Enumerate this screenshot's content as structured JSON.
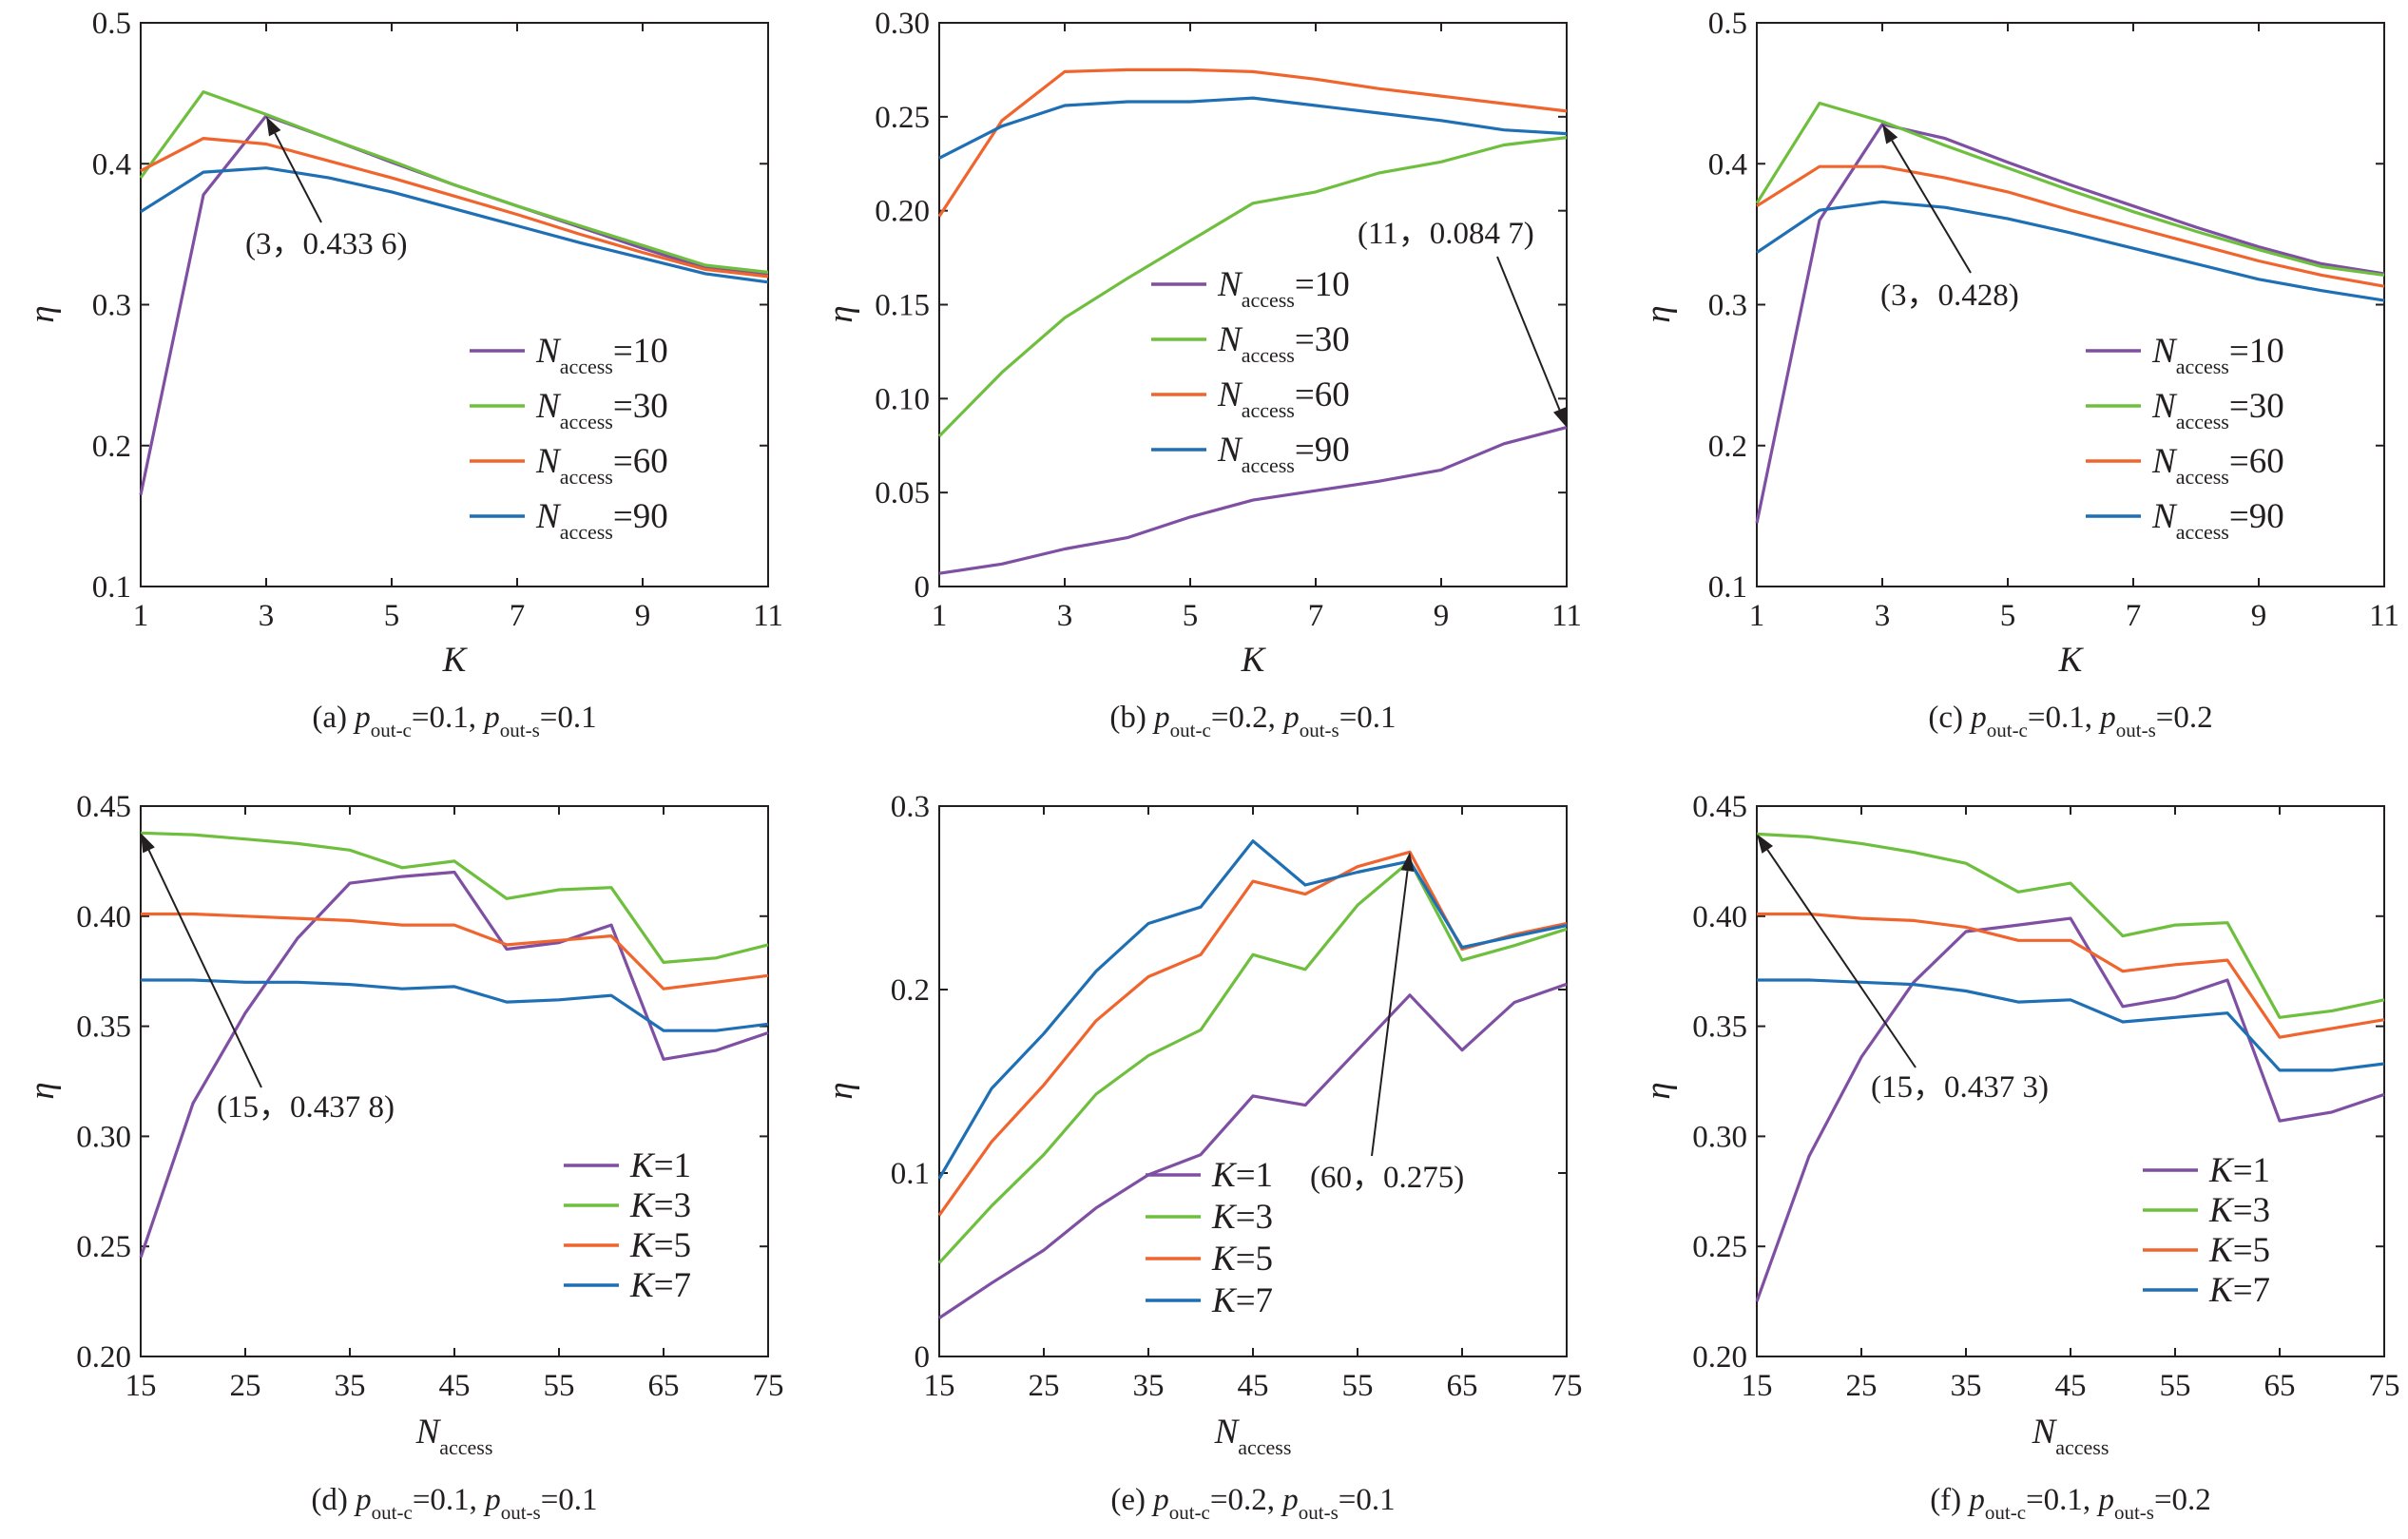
{
  "colors": {
    "purple": "#7e4fa2",
    "green": "#6fbf3f",
    "orange": "#f0642e",
    "blue": "#1f6fb5",
    "axis": "#231f20"
  },
  "chart_data": [
    {
      "type": "line",
      "caption": {
        "label": "(a)",
        "p1": "=0.1,",
        "p2": "=0.1"
      },
      "xlabel": "K",
      "ylabel": "η",
      "xlim": [
        1,
        11
      ],
      "ylim": [
        0.1,
        0.5
      ],
      "xticks": [
        1,
        3,
        5,
        7,
        9,
        11
      ],
      "yticks": [
        0.1,
        0.2,
        0.3,
        0.4,
        0.5
      ],
      "ytick_labels": [
        "0.1",
        "0.2",
        "0.3",
        "0.4",
        "0.5"
      ],
      "x": [
        1,
        2,
        3,
        4,
        5,
        6,
        7,
        8,
        9,
        10,
        11
      ],
      "legend_type": "N",
      "legend_position": "bottom-right",
      "series": [
        {
          "name": "=10",
          "color": "purple",
          "values": [
            0.165,
            0.378,
            0.434,
            0.418,
            0.401,
            0.385,
            0.37,
            0.355,
            0.34,
            0.326,
            0.322
          ]
        },
        {
          "name": "=30",
          "color": "green",
          "values": [
            0.39,
            0.451,
            0.435,
            0.418,
            0.402,
            0.385,
            0.37,
            0.356,
            0.342,
            0.328,
            0.323
          ]
        },
        {
          "name": "=60",
          "color": "orange",
          "values": [
            0.395,
            0.418,
            0.414,
            0.402,
            0.39,
            0.377,
            0.364,
            0.35,
            0.337,
            0.325,
            0.32
          ]
        },
        {
          "name": "=90",
          "color": "blue",
          "values": [
            0.366,
            0.394,
            0.397,
            0.39,
            0.38,
            0.368,
            0.356,
            0.344,
            0.333,
            0.322,
            0.316
          ]
        }
      ],
      "annotation": {
        "text": "(3，0.433 6)",
        "x": 3,
        "y": 0.4336
      }
    },
    {
      "type": "line",
      "caption": {
        "label": "(b)",
        "p1": "=0.2,",
        "p2": "=0.1"
      },
      "xlabel": "K",
      "ylabel": "η",
      "xlim": [
        1,
        11
      ],
      "ylim": [
        0,
        0.3
      ],
      "xticks": [
        1,
        3,
        5,
        7,
        9,
        11
      ],
      "yticks": [
        0,
        0.05,
        0.1,
        0.15,
        0.2,
        0.25,
        0.3
      ],
      "ytick_labels": [
        "0",
        "0.05",
        "0.10",
        "0.15",
        "0.20",
        "0.25",
        "0.30"
      ],
      "x": [
        1,
        2,
        3,
        4,
        5,
        6,
        7,
        8,
        9,
        10,
        11
      ],
      "legend_type": "N",
      "legend_position": "center",
      "series": [
        {
          "name": "=10",
          "color": "purple",
          "values": [
            0.007,
            0.012,
            0.02,
            0.026,
            0.037,
            0.046,
            0.051,
            0.056,
            0.062,
            0.076,
            0.0847
          ]
        },
        {
          "name": "=30",
          "color": "green",
          "values": [
            0.08,
            0.114,
            0.143,
            0.164,
            0.184,
            0.204,
            0.21,
            0.22,
            0.226,
            0.235,
            0.239
          ]
        },
        {
          "name": "=60",
          "color": "orange",
          "values": [
            0.197,
            0.248,
            0.274,
            0.275,
            0.275,
            0.274,
            0.27,
            0.265,
            0.261,
            0.257,
            0.253
          ]
        },
        {
          "name": "=90",
          "color": "blue",
          "values": [
            0.228,
            0.245,
            0.256,
            0.258,
            0.258,
            0.26,
            0.256,
            0.252,
            0.248,
            0.243,
            0.241
          ]
        }
      ],
      "annotation": {
        "text": "(11，0.084 7)",
        "x": 11,
        "y": 0.0847
      }
    },
    {
      "type": "line",
      "caption": {
        "label": "(c)",
        "p1": "=0.1,",
        "p2": "=0.2"
      },
      "xlabel": "K",
      "ylabel": "η",
      "xlim": [
        1,
        11
      ],
      "ylim": [
        0.1,
        0.5
      ],
      "xticks": [
        1,
        3,
        5,
        7,
        9,
        11
      ],
      "yticks": [
        0.1,
        0.2,
        0.3,
        0.4,
        0.5
      ],
      "ytick_labels": [
        "0.1",
        "0.2",
        "0.3",
        "0.4",
        "0.5"
      ],
      "x": [
        1,
        2,
        3,
        4,
        5,
        6,
        7,
        8,
        9,
        10,
        11
      ],
      "legend_type": "N",
      "legend_position": "bottom-right",
      "series": [
        {
          "name": "=10",
          "color": "purple",
          "values": [
            0.145,
            0.36,
            0.428,
            0.418,
            0.401,
            0.385,
            0.37,
            0.355,
            0.341,
            0.329,
            0.322
          ]
        },
        {
          "name": "=30",
          "color": "green",
          "values": [
            0.372,
            0.443,
            0.43,
            0.413,
            0.397,
            0.381,
            0.366,
            0.352,
            0.339,
            0.327,
            0.321
          ]
        },
        {
          "name": "=60",
          "color": "orange",
          "values": [
            0.37,
            0.398,
            0.398,
            0.39,
            0.38,
            0.367,
            0.355,
            0.343,
            0.331,
            0.321,
            0.313
          ]
        },
        {
          "name": "=90",
          "color": "blue",
          "values": [
            0.337,
            0.367,
            0.373,
            0.369,
            0.361,
            0.351,
            0.34,
            0.329,
            0.318,
            0.31,
            0.303
          ]
        }
      ],
      "annotation": {
        "text": "(3，0.428)",
        "x": 3,
        "y": 0.428
      }
    },
    {
      "type": "line",
      "caption": {
        "label": "(d)",
        "p1": "=0.1,",
        "p2": "=0.1"
      },
      "xlabel": "N",
      "ylabel": "η",
      "xlim": [
        15,
        75
      ],
      "ylim": [
        0.2,
        0.45
      ],
      "xticks": [
        15,
        25,
        35,
        45,
        55,
        65,
        75
      ],
      "yticks": [
        0.2,
        0.25,
        0.3,
        0.35,
        0.4,
        0.45
      ],
      "ytick_labels": [
        "0.20",
        "0.25",
        "0.30",
        "0.35",
        "0.40",
        "0.45"
      ],
      "x": [
        15,
        20,
        25,
        30,
        35,
        40,
        45,
        50,
        55,
        60,
        65,
        70,
        75
      ],
      "legend_type": "K",
      "legend_position": "bottom-right",
      "series": [
        {
          "name": "=1",
          "color": "purple",
          "values": [
            0.245,
            0.315,
            0.356,
            0.39,
            0.415,
            0.418,
            0.42,
            0.385,
            0.388,
            0.396,
            0.335,
            0.339,
            0.347
          ]
        },
        {
          "name": "=3",
          "color": "green",
          "values": [
            0.4378,
            0.437,
            0.435,
            0.433,
            0.43,
            0.422,
            0.425,
            0.408,
            0.412,
            0.413,
            0.379,
            0.381,
            0.387
          ]
        },
        {
          "name": "=5",
          "color": "orange",
          "values": [
            0.401,
            0.401,
            0.4,
            0.399,
            0.398,
            0.396,
            0.396,
            0.387,
            0.389,
            0.391,
            0.367,
            0.37,
            0.373
          ]
        },
        {
          "name": "=7",
          "color": "blue",
          "values": [
            0.371,
            0.371,
            0.37,
            0.37,
            0.369,
            0.367,
            0.368,
            0.361,
            0.362,
            0.364,
            0.348,
            0.348,
            0.351
          ]
        }
      ],
      "annotation": {
        "text": "(15，0.437 8)",
        "x": 15,
        "y": 0.4378
      }
    },
    {
      "type": "line",
      "caption": {
        "label": "(e)",
        "p1": "=0.2,",
        "p2": "=0.1"
      },
      "xlabel": "N",
      "ylabel": "η",
      "xlim": [
        15,
        75
      ],
      "ylim": [
        0,
        0.3
      ],
      "xticks": [
        15,
        25,
        35,
        45,
        55,
        65,
        75
      ],
      "yticks": [
        0,
        0.1,
        0.2,
        0.3
      ],
      "ytick_labels": [
        "0",
        "0.1",
        "0.2",
        "0.3"
      ],
      "x": [
        15,
        20,
        25,
        30,
        35,
        40,
        45,
        50,
        55,
        60,
        65,
        70,
        75
      ],
      "legend_type": "K",
      "legend_position": "bottom-left",
      "series": [
        {
          "name": "=1",
          "color": "purple",
          "values": [
            0.021,
            0.04,
            0.058,
            0.081,
            0.099,
            0.11,
            0.142,
            0.137,
            0.167,
            0.197,
            0.167,
            0.193,
            0.203
          ]
        },
        {
          "name": "=3",
          "color": "green",
          "values": [
            0.051,
            0.082,
            0.11,
            0.143,
            0.164,
            0.178,
            0.219,
            0.211,
            0.246,
            0.27,
            0.216,
            0.224,
            0.233
          ]
        },
        {
          "name": "=5",
          "color": "orange",
          "values": [
            0.077,
            0.117,
            0.148,
            0.183,
            0.207,
            0.219,
            0.259,
            0.252,
            0.267,
            0.275,
            0.222,
            0.23,
            0.236
          ]
        },
        {
          "name": "=7",
          "color": "blue",
          "values": [
            0.097,
            0.146,
            0.176,
            0.21,
            0.236,
            0.245,
            0.281,
            0.257,
            0.264,
            0.27,
            0.223,
            0.229,
            0.235
          ]
        }
      ],
      "annotation": {
        "text": "(60，0.275)",
        "x": 60,
        "y": 0.275
      }
    },
    {
      "type": "line",
      "caption": {
        "label": "(f)",
        "p1": "=0.1,",
        "p2": "=0.2"
      },
      "xlabel": "N",
      "ylabel": "η",
      "xlim": [
        15,
        75
      ],
      "ylim": [
        0.2,
        0.45
      ],
      "xticks": [
        15,
        25,
        35,
        45,
        55,
        65,
        75
      ],
      "yticks": [
        0.2,
        0.25,
        0.3,
        0.35,
        0.4,
        0.45
      ],
      "ytick_labels": [
        "0.20",
        "0.25",
        "0.30",
        "0.35",
        "0.40",
        "0.45"
      ],
      "x": [
        15,
        20,
        25,
        30,
        35,
        40,
        45,
        50,
        55,
        60,
        65,
        70,
        75
      ],
      "legend_type": "K",
      "legend_position": "bottom-right",
      "series": [
        {
          "name": "=1",
          "color": "purple",
          "values": [
            0.225,
            0.291,
            0.336,
            0.37,
            0.393,
            0.396,
            0.399,
            0.359,
            0.363,
            0.371,
            0.307,
            0.311,
            0.319
          ]
        },
        {
          "name": "=3",
          "color": "green",
          "values": [
            0.4373,
            0.436,
            0.433,
            0.429,
            0.424,
            0.411,
            0.415,
            0.391,
            0.396,
            0.397,
            0.354,
            0.357,
            0.362
          ]
        },
        {
          "name": "=5",
          "color": "orange",
          "values": [
            0.401,
            0.401,
            0.399,
            0.398,
            0.395,
            0.389,
            0.389,
            0.375,
            0.378,
            0.38,
            0.345,
            0.349,
            0.353
          ]
        },
        {
          "name": "=7",
          "color": "blue",
          "values": [
            0.371,
            0.371,
            0.37,
            0.369,
            0.366,
            0.361,
            0.362,
            0.352,
            0.354,
            0.356,
            0.33,
            0.33,
            0.333
          ]
        }
      ],
      "annotation": {
        "text": "(15，0.437 3)",
        "x": 15,
        "y": 0.4373
      }
    }
  ],
  "text": {
    "access_sub": "access",
    "outc_sub": "out-c",
    "outs_sub": "out-s",
    "p": "p",
    "N": "N",
    "K": "K",
    "eta": "η"
  }
}
